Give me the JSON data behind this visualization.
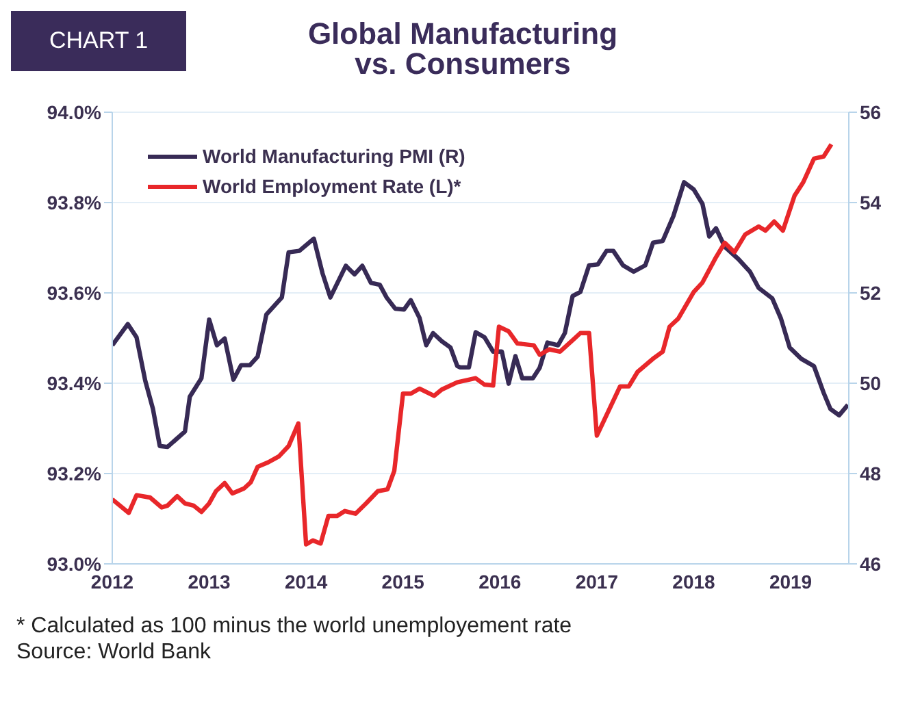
{
  "chart_data": {
    "type": "line",
    "title": "Global Manufacturing vs. Consumers",
    "annotations": [
      "CHART 1",
      "* Calculated as 100 minus the world unemployement rate",
      "Source: World Bank"
    ],
    "xlim": [
      2012,
      2019.6
    ],
    "xticks": [
      2012,
      2013,
      2014,
      2015,
      2016,
      2017,
      2018,
      2019
    ],
    "ylim": [
      93.0,
      94.0
    ],
    "yticks": [
      {
        "value": 93.0,
        "label": "93.0%"
      },
      {
        "value": 93.2,
        "label": "93.2%"
      },
      {
        "value": 93.4,
        "label": "93.4%"
      },
      {
        "value": 93.6,
        "label": "93.6%"
      },
      {
        "value": 93.8,
        "label": "93.8%"
      },
      {
        "value": 94.0,
        "label": "94.0%"
      }
    ],
    "y2lim": [
      46,
      56
    ],
    "y2ticks": [
      46,
      48,
      50,
      52,
      54,
      56
    ],
    "grid": "y",
    "legend": "top left",
    "marker": "none",
    "line_style": "solid",
    "series": [
      {
        "name": "World Manufacturing PMI (R)",
        "color": "#372a55",
        "axis": "y2",
        "x": [
          2012.0,
          2012.16,
          2012.25,
          2012.34,
          2012.42,
          2012.49,
          2012.57,
          2012.75,
          2012.8,
          2012.92,
          2013.0,
          2013.08,
          2013.16,
          2013.25,
          2013.33,
          2013.42,
          2013.5,
          2013.59,
          2013.75,
          2013.82,
          2013.93,
          2014.08,
          2014.17,
          2014.25,
          2014.41,
          2014.5,
          2014.58,
          2014.67,
          2014.76,
          2014.83,
          2014.92,
          2015.01,
          2015.08,
          2015.17,
          2015.24,
          2015.31,
          2015.4,
          2015.49,
          2015.56,
          2015.59,
          2015.68,
          2015.75,
          2015.84,
          2015.93,
          2016.02,
          2016.09,
          2016.16,
          2016.23,
          2016.34,
          2016.41,
          2016.49,
          2016.6,
          2016.67,
          2016.75,
          2016.83,
          2016.92,
          2017.01,
          2017.1,
          2017.17,
          2017.27,
          2017.38,
          2017.5,
          2017.58,
          2017.68,
          2017.79,
          2017.9,
          2018.0,
          2018.09,
          2018.16,
          2018.23,
          2018.32,
          2018.46,
          2018.58,
          2018.67,
          2018.81,
          2018.9,
          2018.99,
          2019.11,
          2019.24,
          2019.34,
          2019.41,
          2019.5,
          2019.59
        ],
        "values": [
          50.84,
          51.31,
          51.02,
          50.06,
          49.43,
          48.61,
          48.59,
          48.93,
          49.7,
          50.11,
          51.41,
          50.84,
          50.99,
          50.08,
          50.4,
          50.4,
          50.59,
          51.52,
          51.9,
          52.9,
          52.93,
          53.2,
          52.43,
          51.9,
          52.6,
          52.41,
          52.6,
          52.22,
          52.18,
          51.9,
          51.65,
          51.63,
          51.84,
          51.45,
          50.84,
          51.11,
          50.93,
          50.79,
          50.38,
          50.35,
          50.35,
          51.13,
          51.02,
          50.7,
          50.7,
          49.99,
          50.6,
          50.11,
          50.11,
          50.34,
          50.9,
          50.84,
          51.11,
          51.93,
          52.02,
          52.61,
          52.63,
          52.93,
          52.93,
          52.61,
          52.47,
          52.61,
          53.11,
          53.15,
          53.7,
          54.45,
          54.29,
          53.97,
          53.25,
          53.43,
          53.02,
          52.75,
          52.47,
          52.11,
          51.88,
          51.43,
          50.79,
          50.54,
          50.38,
          49.79,
          49.43,
          49.29,
          49.52
        ]
      },
      {
        "name": "World Employment Rate (L)*",
        "color": "#e8272a",
        "x": [
          2012.0,
          2012.17,
          2012.25,
          2012.39,
          2012.51,
          2012.57,
          2012.67,
          2012.75,
          2012.84,
          2012.92,
          2013.0,
          2013.07,
          2013.16,
          2013.24,
          2013.36,
          2013.43,
          2013.5,
          2013.61,
          2013.72,
          2013.82,
          2013.92,
          2014.0,
          2014.07,
          2014.15,
          2014.23,
          2014.32,
          2014.4,
          2014.51,
          2014.62,
          2014.74,
          2014.84,
          2014.91,
          2015.0,
          2015.08,
          2015.17,
          2015.32,
          2015.4,
          2015.56,
          2015.75,
          2015.84,
          2015.93,
          2015.99,
          2016.09,
          2016.18,
          2016.35,
          2016.41,
          2016.51,
          2016.62,
          2016.76,
          2016.83,
          2016.92,
          2017.0,
          2017.13,
          2017.24,
          2017.33,
          2017.42,
          2017.59,
          2017.68,
          2017.75,
          2017.84,
          2018.0,
          2018.09,
          2018.23,
          2018.32,
          2018.42,
          2018.53,
          2018.67,
          2018.74,
          2018.83,
          2018.92,
          2019.04,
          2019.13,
          2019.24,
          2019.34,
          2019.42
        ],
        "values": [
          93.143,
          93.113,
          93.152,
          93.147,
          93.125,
          93.129,
          93.15,
          93.134,
          93.129,
          93.115,
          93.134,
          93.161,
          93.179,
          93.156,
          93.167,
          93.181,
          93.215,
          93.225,
          93.238,
          93.261,
          93.311,
          93.043,
          93.052,
          93.045,
          93.106,
          93.106,
          93.117,
          93.111,
          93.134,
          93.161,
          93.165,
          93.206,
          93.377,
          93.377,
          93.388,
          93.372,
          93.386,
          93.402,
          93.411,
          93.397,
          93.395,
          93.525,
          93.515,
          93.488,
          93.484,
          93.463,
          93.475,
          93.47,
          93.497,
          93.511,
          93.511,
          93.284,
          93.343,
          93.393,
          93.393,
          93.425,
          93.456,
          93.47,
          93.525,
          93.543,
          93.602,
          93.623,
          93.679,
          93.711,
          93.69,
          93.729,
          93.747,
          93.738,
          93.758,
          93.738,
          93.815,
          93.845,
          93.897,
          93.902,
          93.929
        ]
      }
    ]
  }
}
